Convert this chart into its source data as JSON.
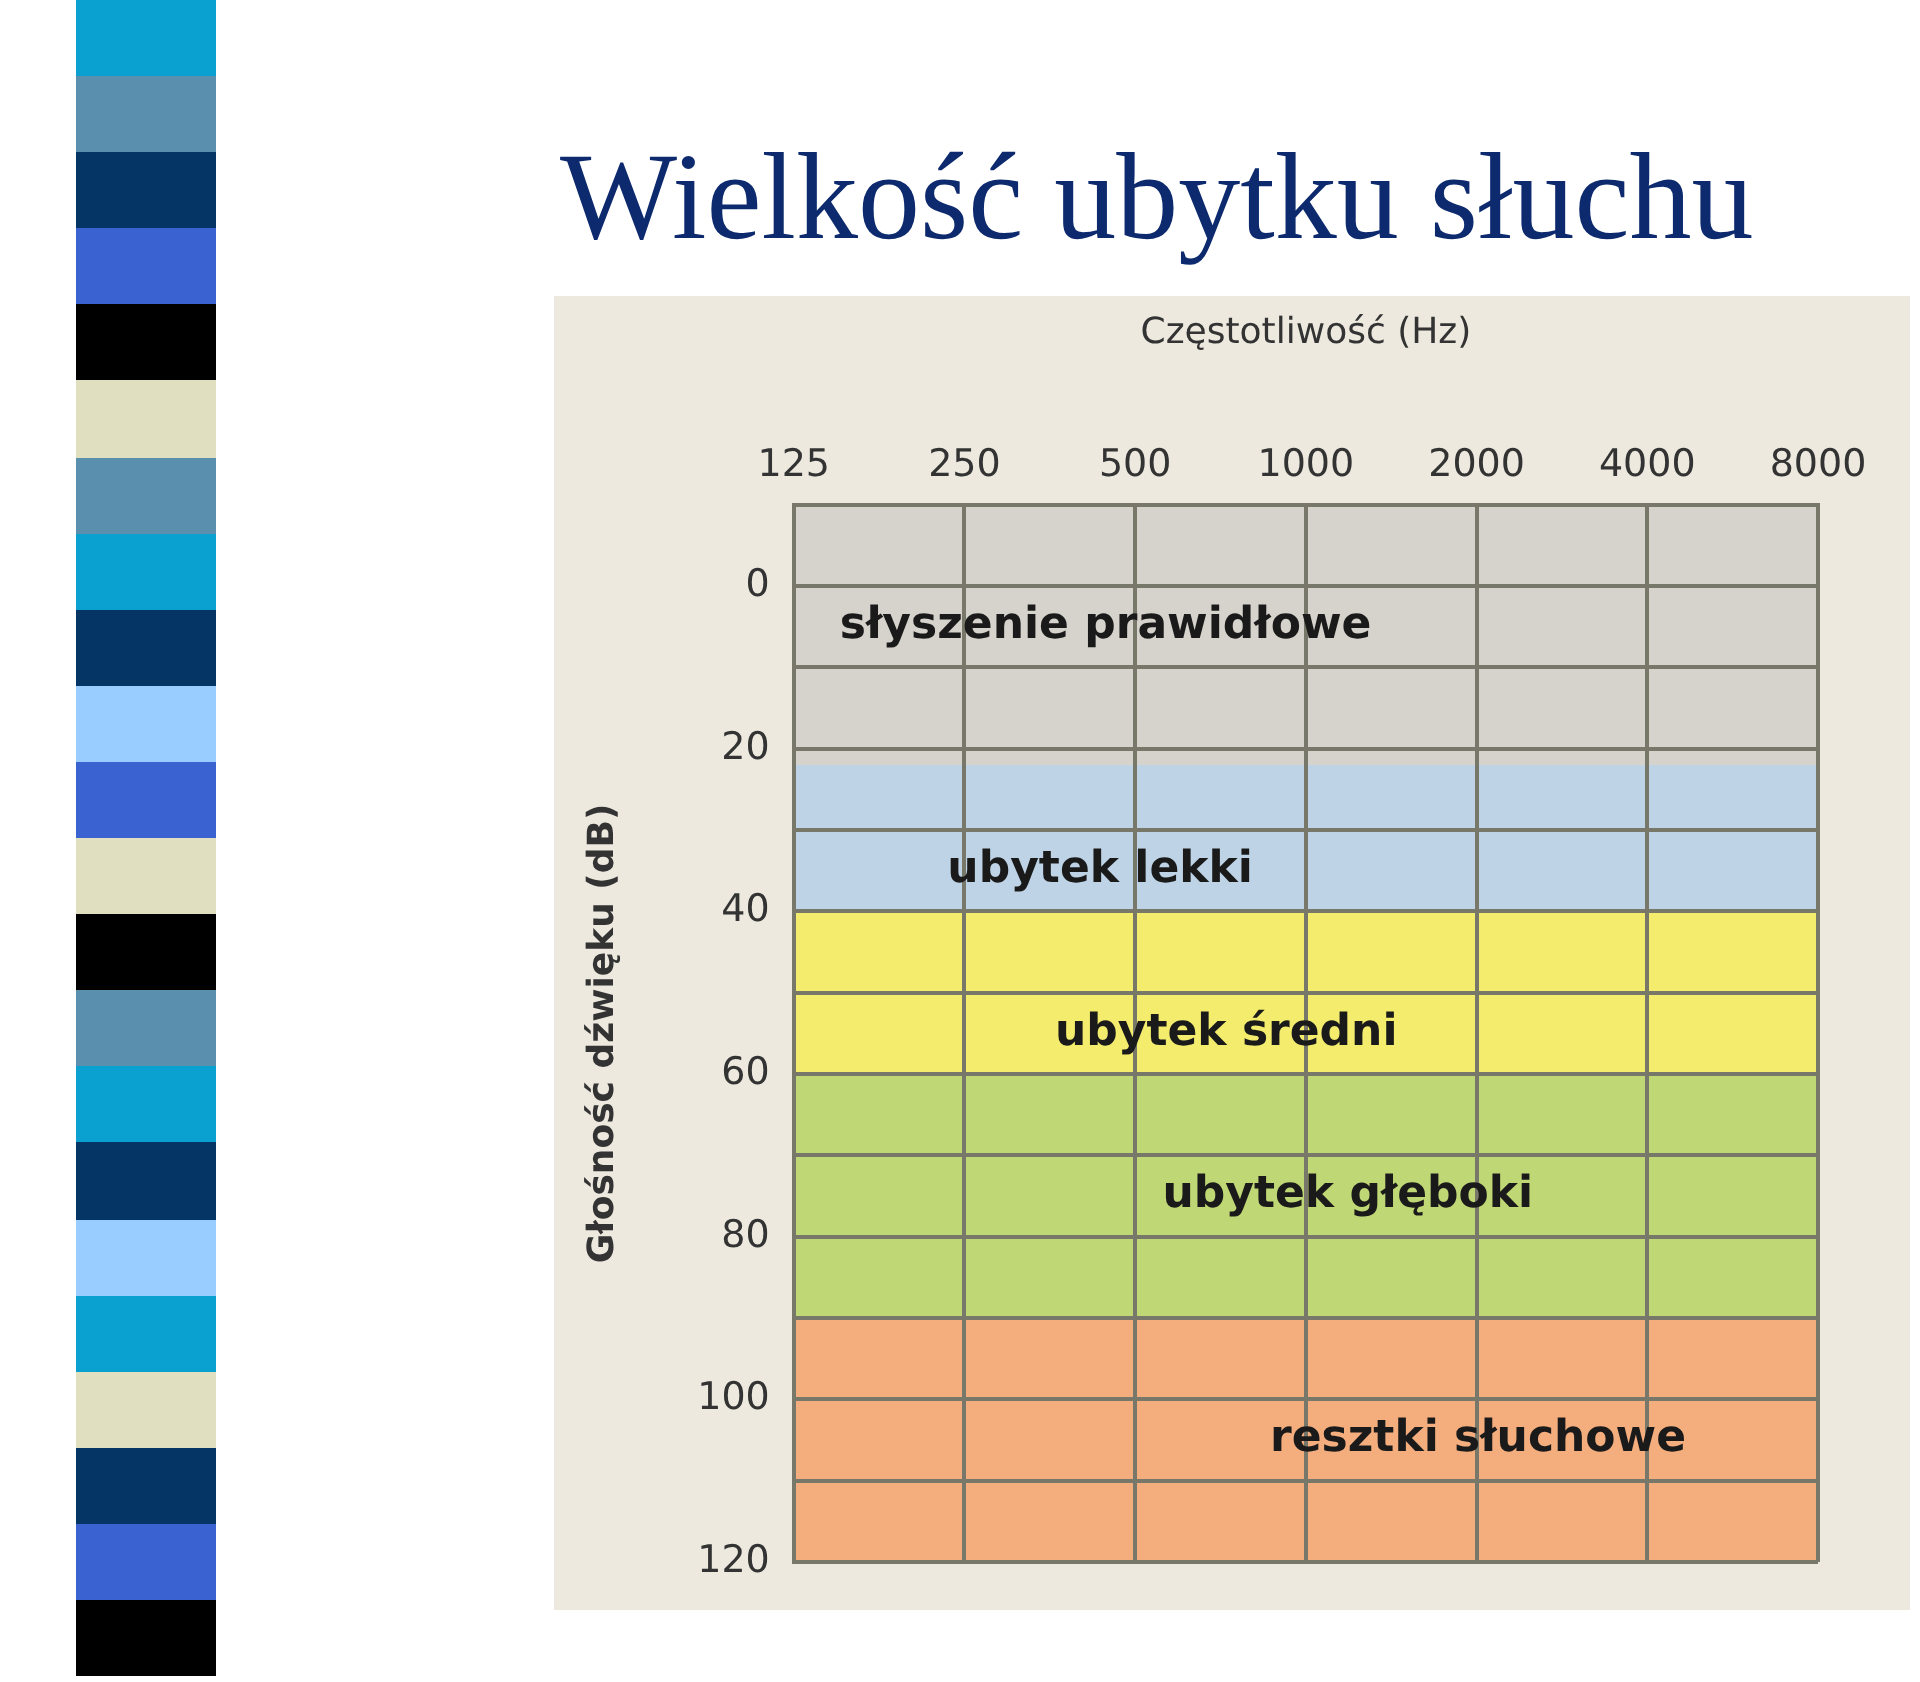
{
  "chart_data": {
    "type": "line",
    "title": "Wielkość ubytku słuchu",
    "xlabel": "Częstotliwość (Hz)",
    "ylabel": "Głośność dźwięku (dB)",
    "categories": [
      "125",
      "250",
      "500",
      "1000",
      "2000",
      "4000",
      "8000"
    ],
    "ylim": [
      120,
      -10
    ],
    "yticks": [
      {
        "value": -10,
        "label": null
      },
      0,
      {
        "value": 10,
        "label": null
      },
      20,
      {
        "value": 30,
        "label": null
      },
      40,
      {
        "value": 50,
        "label": null
      },
      60,
      {
        "value": 70,
        "label": null
      },
      80,
      {
        "value": 90,
        "label": null
      },
      100,
      {
        "value": 110,
        "label": null
      },
      120
    ],
    "grid": true,
    "bands": [
      {
        "axis": "y",
        "from": -10,
        "to": 22,
        "label": "słyszenie prawidłowe",
        "color": "#d6d2cc"
      },
      {
        "axis": "y",
        "from": 22,
        "to": 40,
        "label": "ubytek lekki",
        "color": "#bed4e6"
      },
      {
        "axis": "y",
        "from": 40,
        "to": 60,
        "label": "ubytek średni",
        "color": "#f3ec6c"
      },
      {
        "axis": "y",
        "from": 60,
        "to": 90,
        "label": "ubytek głęboki",
        "color": "#c0d775"
      },
      {
        "axis": "y",
        "from": 90,
        "to": 120,
        "label": "resztki słuchowe",
        "color": "#f4ae7e"
      }
    ]
  }
}
